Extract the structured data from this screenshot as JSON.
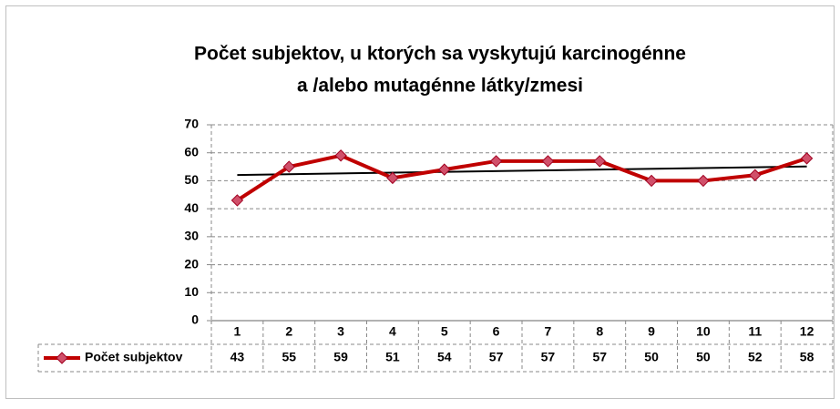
{
  "chart_data": {
    "type": "line",
    "title": [
      "Počet subjektov, u ktorých sa vyskytujú karcinogénne",
      "a /alebo mutagénne látky/zmesi"
    ],
    "categories": [
      "1",
      "2",
      "3",
      "4",
      "5",
      "6",
      "7",
      "8",
      "9",
      "10",
      "11",
      "12"
    ],
    "series": [
      {
        "name": "Počet subjektov",
        "color": "#c00000",
        "values": [
          43,
          55,
          59,
          51,
          54,
          57,
          57,
          57,
          50,
          50,
          52,
          58
        ]
      }
    ],
    "trendline": {
      "type": "linear",
      "color": "#000000"
    },
    "ylim": [
      0,
      70
    ],
    "yticks": [
      0,
      10,
      20,
      30,
      40,
      50,
      60,
      70
    ],
    "grid": true,
    "data_table": true
  }
}
